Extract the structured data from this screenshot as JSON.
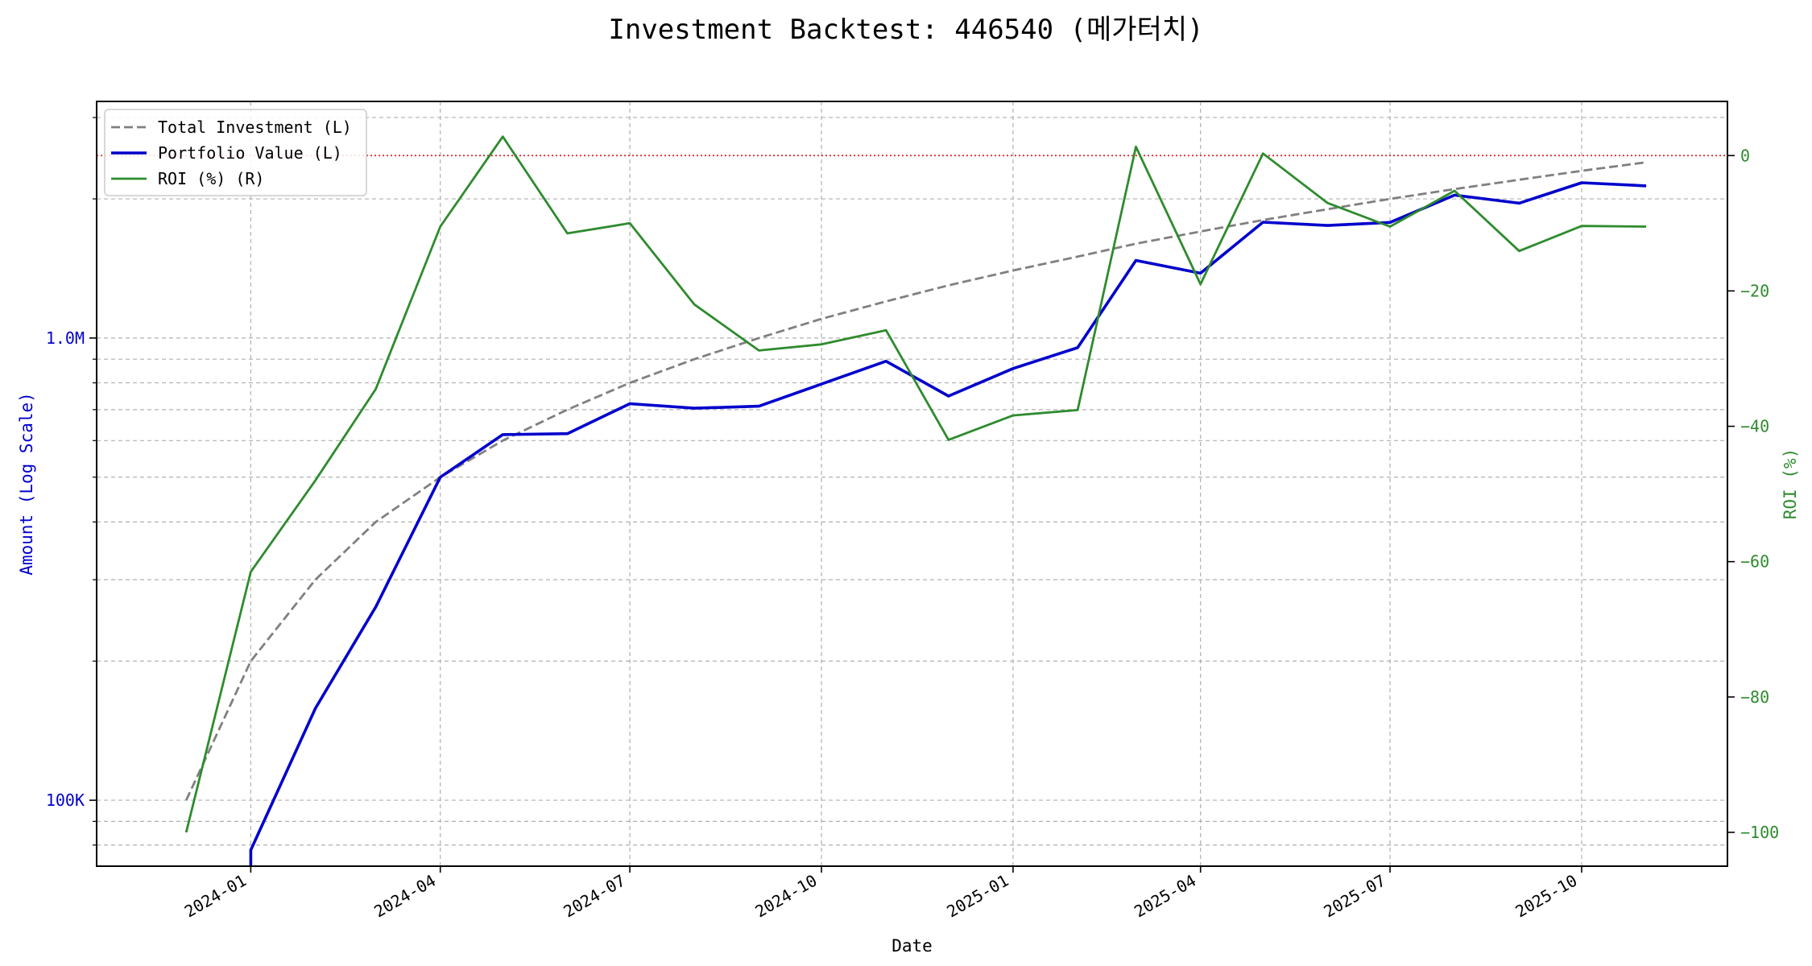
{
  "chart_data": {
    "type": "line",
    "title": "Investment Backtest: 446540 (메가터치)",
    "xlabel": "Date",
    "ylabel_left": "Amount (Log Scale)",
    "ylabel_right": "ROI (%)",
    "left_axis": {
      "scale": "log",
      "ylim": [
        72000,
        3250000
      ],
      "tick_values": [
        100000,
        1000000
      ],
      "tick_labels": [
        "100K",
        "1.0M"
      ],
      "minor_ticks": [
        80000,
        90000,
        200000,
        300000,
        400000,
        500000,
        600000,
        700000,
        800000,
        900000,
        2000000,
        3000000
      ],
      "color": "#0000cc"
    },
    "right_axis": {
      "scale": "linear",
      "ylim": [
        -105,
        8
      ],
      "tick_values": [
        0,
        -20,
        -40,
        -60,
        -80,
        -100
      ],
      "tick_labels": [
        "0",
        "−20",
        "−40",
        "−60",
        "−80",
        "−100"
      ],
      "color": "#2e8b2e",
      "reference_line": 0,
      "reference_line_color": "#e02020"
    },
    "x_axis": {
      "range": [
        "2023-10-19",
        "2025-12-10"
      ],
      "tick_values": [
        "2024-01-01",
        "2024-04-01",
        "2024-07-01",
        "2024-10-01",
        "2025-01-01",
        "2025-04-01",
        "2025-07-01",
        "2025-10-01"
      ],
      "tick_labels": [
        "2024-01",
        "2024-04",
        "2024-07",
        "2024-10",
        "2025-01",
        "2025-04",
        "2025-07",
        "2025-10"
      ]
    },
    "grid": true,
    "legend_position": "top-left",
    "series": [
      {
        "name": "Total Investment (L)",
        "axis": "left",
        "color": "#808080",
        "style": "dashed",
        "x": [
          "2023-12-01",
          "2024-01-01",
          "2024-02-01",
          "2024-03-01",
          "2024-04-01",
          "2024-05-01",
          "2024-06-01",
          "2024-07-01",
          "2024-08-01",
          "2024-09-01",
          "2024-10-01",
          "2024-11-01",
          "2024-12-01",
          "2025-01-01",
          "2025-02-01",
          "2025-03-01",
          "2025-04-01",
          "2025-05-01",
          "2025-06-01",
          "2025-07-01",
          "2025-08-01",
          "2025-09-01",
          "2025-10-01",
          "2025-11-01"
        ],
        "values": [
          100000,
          200000,
          300000,
          400000,
          500000,
          600000,
          700000,
          800000,
          900000,
          1000000,
          1100000,
          1200000,
          1300000,
          1400000,
          1500000,
          1600000,
          1700000,
          1800000,
          1900000,
          2000000,
          2100000,
          2200000,
          2300000,
          2400000
        ]
      },
      {
        "name": "Portfolio Value (L)",
        "axis": "left",
        "color": "#0000cc",
        "style": "solid",
        "x": [
          "2024-01-01",
          "2024-01-01",
          "2024-02-01",
          "2024-03-01",
          "2024-04-01",
          "2024-05-01",
          "2024-06-01",
          "2024-07-01",
          "2024-08-01",
          "2024-09-01",
          "2024-10-01",
          "2024-11-01",
          "2024-12-01",
          "2025-01-01",
          "2025-02-01",
          "2025-03-01",
          "2025-04-01",
          "2025-05-01",
          "2025-06-01",
          "2025-07-01",
          "2025-08-01",
          "2025-09-01",
          "2025-10-01",
          "2025-11-01"
        ],
        "values": [
          60000,
          78000,
          158000,
          262000,
          500000,
          618000,
          621000,
          721000,
          705000,
          712000,
          795000,
          891000,
          749000,
          859000,
          953000,
          1472000,
          1381000,
          1781000,
          1752000,
          1779000,
          2038000,
          1958000,
          2168000,
          2134000
        ]
      },
      {
        "name": "ROI (%) (R)",
        "axis": "right",
        "color": "#2e8b2e",
        "style": "solid",
        "x": [
          "2023-12-01",
          "2024-01-01",
          "2024-02-01",
          "2024-03-01",
          "2024-04-01",
          "2024-05-01",
          "2024-06-01",
          "2024-07-01",
          "2024-08-01",
          "2024-09-01",
          "2024-10-01",
          "2024-11-01",
          "2024-12-01",
          "2025-01-01",
          "2025-02-01",
          "2025-03-01",
          "2025-04-01",
          "2025-05-01",
          "2025-06-01",
          "2025-07-01",
          "2025-08-01",
          "2025-09-01",
          "2025-10-01",
          "2025-11-01"
        ],
        "values": [
          -100,
          -61.5,
          -48,
          -34.5,
          -10.5,
          2.8,
          -11.5,
          -10,
          -22,
          -28.8,
          -27.9,
          -25.8,
          -42,
          -38.4,
          -37.6,
          1.3,
          -19,
          0.3,
          -7,
          -10.5,
          -5.2,
          -14.1,
          -10.4,
          -10.5
        ]
      }
    ]
  }
}
